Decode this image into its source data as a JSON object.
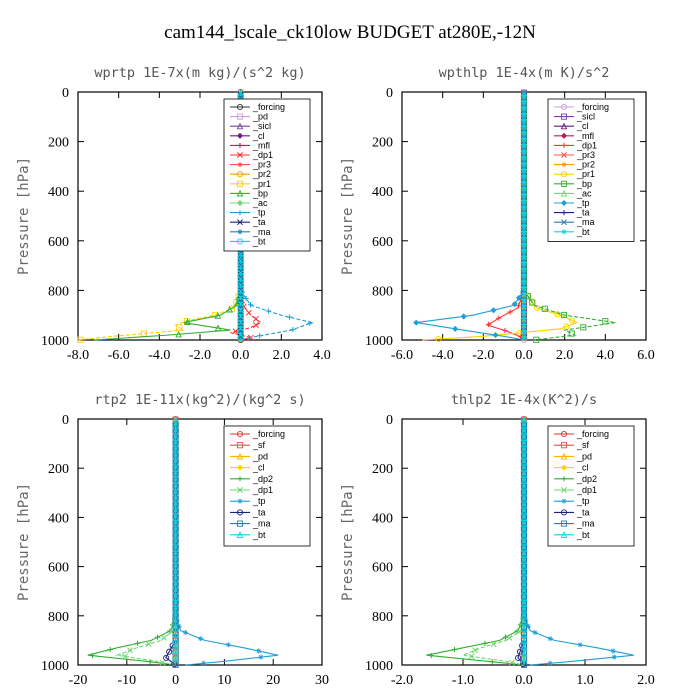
{
  "title": "cam144_lscale_ck10low  BUDGET at280E,-12N",
  "chart_data": [
    {
      "type": "line",
      "title": "wprtp  1E-7x(m kg)/(s^2 kg)",
      "ylabel": "Pressure [hPa]",
      "ylim": [
        1000,
        0
      ],
      "xlim": [
        -8,
        4
      ],
      "xticks": [
        "-8.0",
        "-6.0",
        "-4.0",
        "-2.0",
        "0.0",
        "2.0",
        "4.0"
      ],
      "xtick_values": [
        -8,
        -6,
        -4,
        -2,
        0,
        2,
        4
      ],
      "yticks": [
        "0",
        "200",
        "400",
        "600",
        "800",
        "1000"
      ],
      "ytick_values": [
        0,
        200,
        400,
        600,
        800,
        1000
      ],
      "legend": "top-right",
      "series": [
        {
          "name": "_forcing",
          "color": "#333333",
          "x": [
            0,
            0,
            0,
            0,
            0,
            0,
            0
          ],
          "y": [
            0,
            200,
            400,
            600,
            800,
            950,
            1000
          ]
        },
        {
          "name": "_pd",
          "color": "#c8a0d8",
          "x": [
            0,
            0,
            0,
            0
          ],
          "y": [
            0,
            500,
            900,
            1000
          ]
        },
        {
          "name": "_sicl",
          "color": "#7a3fa0",
          "x": [
            0,
            0,
            0,
            0
          ],
          "y": [
            0,
            500,
            900,
            1000
          ]
        },
        {
          "name": "_cl",
          "color": "#6a1a8a",
          "x": [
            0,
            0,
            0,
            0
          ],
          "y": [
            0,
            500,
            900,
            1000
          ]
        },
        {
          "name": "_mfl",
          "color": "#c0185a",
          "x": [
            0,
            0,
            0,
            0
          ],
          "y": [
            0,
            500,
            900,
            1000
          ]
        },
        {
          "name": "_dp1",
          "color": "#ff3030",
          "x": [
            0,
            0,
            0.1,
            0.5,
            1.0,
            0.5,
            -0.5,
            0.5,
            0
          ],
          "y": [
            0,
            800,
            860,
            900,
            930,
            950,
            970,
            990,
            1000
          ]
        },
        {
          "name": "_pr3",
          "color": "#ff5050",
          "x": [
            0,
            0,
            0,
            0
          ],
          "y": [
            0,
            500,
            900,
            1000
          ]
        },
        {
          "name": "_pr2",
          "color": "#ff9900",
          "x": [
            0,
            0,
            0,
            0
          ],
          "y": [
            0,
            500,
            900,
            1000
          ]
        },
        {
          "name": "_pr1",
          "color": "#ffd000",
          "x": [
            0,
            0,
            -0.3,
            -1.3,
            -2.5,
            -3.2,
            -2.8,
            -6.3,
            -8.0
          ],
          "y": [
            0,
            800,
            870,
            900,
            920,
            940,
            960,
            985,
            1000
          ]
        },
        {
          "name": "_bp",
          "color": "#30b030",
          "x": [
            0,
            0,
            -0.2,
            -1.0,
            -2.8,
            -0.5,
            -3.5,
            -7.2
          ],
          "y": [
            0,
            800,
            860,
            900,
            930,
            960,
            980,
            1000
          ]
        },
        {
          "name": "_ac",
          "color": "#70d870",
          "x": [
            0,
            0,
            0,
            0
          ],
          "y": [
            0,
            500,
            900,
            1000
          ]
        },
        {
          "name": "_tp",
          "color": "#1f9ed8",
          "x": [
            0,
            0,
            0.5,
            2.0,
            3.5,
            2.5,
            0.8,
            0
          ],
          "y": [
            0,
            800,
            860,
            900,
            930,
            960,
            985,
            1000
          ]
        },
        {
          "name": "_ta",
          "color": "#1a237e",
          "x": [
            0,
            0,
            0,
            0
          ],
          "y": [
            0,
            500,
            900,
            1000
          ]
        },
        {
          "name": "_ma",
          "color": "#2a7ab8",
          "x": [
            0,
            0,
            0,
            0
          ],
          "y": [
            0,
            500,
            900,
            1000
          ]
        },
        {
          "name": "_bt",
          "color": "#00d8e8",
          "x": [
            0,
            0,
            0,
            0
          ],
          "y": [
            0,
            500,
            900,
            1000
          ]
        }
      ]
    },
    {
      "type": "line",
      "title": "wpthlp  1E-4x(m K)/s^2",
      "ylabel": "Pressure [hPa]",
      "ylim": [
        1000,
        0
      ],
      "xlim": [
        -6,
        6
      ],
      "xticks": [
        "-6.0",
        "-4.0",
        "-2.0",
        "0.0",
        "2.0",
        "4.0",
        "6.0"
      ],
      "xtick_values": [
        -6,
        -4,
        -2,
        0,
        2,
        4,
        6
      ],
      "yticks": [
        "0",
        "200",
        "400",
        "600",
        "800",
        "1000"
      ],
      "ytick_values": [
        0,
        200,
        400,
        600,
        800,
        1000
      ],
      "legend": "top-right",
      "series": [
        {
          "name": "_forcing",
          "color": "#c8a0d8",
          "x": [
            0,
            0,
            0,
            0,
            0
          ],
          "y": [
            0,
            200,
            500,
            900,
            1000
          ]
        },
        {
          "name": "_sicl",
          "color": "#7a3fa0",
          "x": [
            0,
            0,
            0,
            0
          ],
          "y": [
            0,
            500,
            900,
            1000
          ]
        },
        {
          "name": "_cl",
          "color": "#6a1a8a",
          "x": [
            0,
            0,
            0,
            0
          ],
          "y": [
            0,
            500,
            900,
            1000
          ]
        },
        {
          "name": "_mfl",
          "color": "#c0185a",
          "x": [
            0,
            0,
            0,
            0
          ],
          "y": [
            0,
            500,
            900,
            1000
          ]
        },
        {
          "name": "_dp1",
          "color": "#ff3030",
          "x": [
            0,
            0,
            -0.3,
            -1.2,
            -1.8,
            -1.0,
            -0.2,
            0
          ],
          "y": [
            0,
            800,
            870,
            910,
            940,
            960,
            985,
            1000
          ]
        },
        {
          "name": "_pr3",
          "color": "#ff5050",
          "x": [
            0,
            0,
            0,
            0
          ],
          "y": [
            0,
            500,
            900,
            1000
          ]
        },
        {
          "name": "_pr2",
          "color": "#ff9900",
          "x": [
            0,
            0,
            0,
            0
          ],
          "y": [
            0,
            500,
            900,
            1000
          ]
        },
        {
          "name": "_pr1",
          "color": "#ffd000",
          "x": [
            0,
            0,
            0.6,
            1.8,
            2.6,
            1.8,
            -2.0,
            -5.0
          ],
          "y": [
            0,
            800,
            870,
            900,
            930,
            955,
            985,
            1000
          ]
        },
        {
          "name": "_bp",
          "color": "#30b030",
          "x": [
            0,
            0,
            0.5,
            2.0,
            4.5,
            2.0,
            2.5,
            0.5
          ],
          "y": [
            0,
            800,
            860,
            900,
            930,
            960,
            980,
            1000
          ]
        },
        {
          "name": "_ac",
          "color": "#70d870",
          "x": [
            0,
            0,
            0,
            0
          ],
          "y": [
            0,
            500,
            900,
            1000
          ]
        },
        {
          "name": "_tp",
          "color": "#1f9ed8",
          "x": [
            0,
            0,
            -0.5,
            -2.5,
            -5.3,
            -3.0,
            -1.0,
            0
          ],
          "y": [
            0,
            800,
            860,
            900,
            930,
            960,
            985,
            1000
          ]
        },
        {
          "name": "_ta",
          "color": "#1a237e",
          "x": [
            0,
            0,
            0,
            0
          ],
          "y": [
            0,
            500,
            900,
            1000
          ]
        },
        {
          "name": "_ma",
          "color": "#2a7ab8",
          "x": [
            0,
            0,
            0,
            0
          ],
          "y": [
            0,
            500,
            900,
            1000
          ]
        },
        {
          "name": "_bt",
          "color": "#00d8e8",
          "x": [
            0,
            0,
            0,
            0
          ],
          "y": [
            0,
            500,
            900,
            1000
          ]
        }
      ]
    },
    {
      "type": "line",
      "title": "rtp2  1E-11x(kg^2)/(kg^2 s)",
      "ylabel": "Pressure [hPa]",
      "ylim": [
        1000,
        0
      ],
      "xlim": [
        -20,
        30
      ],
      "xticks": [
        "-20",
        "-10",
        "0",
        "10",
        "20",
        "30"
      ],
      "xtick_values": [
        -20,
        -10,
        0,
        10,
        20,
        30
      ],
      "yticks": [
        "0",
        "200",
        "400",
        "600",
        "800",
        "1000"
      ],
      "ytick_values": [
        0,
        200,
        400,
        600,
        800,
        1000
      ],
      "legend": "top-right",
      "series": [
        {
          "name": "_forcing",
          "color": "#e03030",
          "x": [
            0,
            0,
            0,
            0,
            0
          ],
          "y": [
            0,
            300,
            600,
            900,
            1000
          ]
        },
        {
          "name": "_sf",
          "color": "#e05050",
          "x": [
            0,
            0,
            0,
            0
          ],
          "y": [
            0,
            500,
            900,
            1000
          ]
        },
        {
          "name": "_pd",
          "color": "#ffb000",
          "x": [
            0,
            0,
            0,
            0
          ],
          "y": [
            0,
            500,
            900,
            1000
          ]
        },
        {
          "name": "_cl",
          "color": "#ffd000",
          "x": [
            0,
            0,
            0,
            0
          ],
          "y": [
            0,
            500,
            900,
            1000
          ]
        },
        {
          "name": "_dp2",
          "color": "#30b030",
          "x": [
            0,
            0,
            -1,
            -5,
            -12,
            -18,
            -6,
            0
          ],
          "y": [
            0,
            800,
            860,
            900,
            930,
            960,
            985,
            1000
          ]
        },
        {
          "name": "_dp1",
          "color": "#70d870",
          "x": [
            0,
            0,
            -0.5,
            -3,
            -8,
            -12,
            -4,
            0
          ],
          "y": [
            0,
            800,
            860,
            900,
            930,
            960,
            985,
            1000
          ]
        },
        {
          "name": "_tp",
          "color": "#1f9ed8",
          "x": [
            0,
            0,
            1,
            6,
            14,
            21,
            10,
            2
          ],
          "y": [
            0,
            800,
            860,
            900,
            930,
            960,
            985,
            1000
          ]
        },
        {
          "name": "_ta",
          "color": "#1a237e",
          "x": [
            0,
            0,
            0,
            -2,
            0
          ],
          "y": [
            0,
            500,
            900,
            970,
            1000
          ]
        },
        {
          "name": "_ma",
          "color": "#2a7ab8",
          "x": [
            0,
            0,
            0,
            0
          ],
          "y": [
            0,
            500,
            900,
            1000
          ]
        },
        {
          "name": "_bt",
          "color": "#00d8e8",
          "x": [
            0,
            0,
            0,
            0
          ],
          "y": [
            0,
            500,
            900,
            1000
          ]
        }
      ]
    },
    {
      "type": "line",
      "title": "thlp2  1E-4x(K^2)/s",
      "ylabel": "Pressure [hPa]",
      "ylim": [
        1000,
        0
      ],
      "xlim": [
        -2,
        2
      ],
      "xticks": [
        "-2.0",
        "-1.0",
        "0.0",
        "1.0",
        "2.0"
      ],
      "xtick_values": [
        -2,
        -1,
        0,
        1,
        2
      ],
      "yticks": [
        "0",
        "200",
        "400",
        "600",
        "800",
        "1000"
      ],
      "ytick_values": [
        0,
        200,
        400,
        600,
        800,
        1000
      ],
      "legend": "top-right",
      "series": [
        {
          "name": "_forcing",
          "color": "#e03030",
          "x": [
            0,
            0,
            0,
            0,
            0
          ],
          "y": [
            0,
            300,
            600,
            900,
            1000
          ]
        },
        {
          "name": "_sf",
          "color": "#e05050",
          "x": [
            0,
            0,
            0,
            0
          ],
          "y": [
            0,
            500,
            900,
            1000
          ]
        },
        {
          "name": "_pd",
          "color": "#ffb000",
          "x": [
            0,
            0,
            0,
            0
          ],
          "y": [
            0,
            500,
            900,
            1000
          ]
        },
        {
          "name": "_cl",
          "color": "#ffd000",
          "x": [
            0,
            0,
            0,
            0
          ],
          "y": [
            0,
            500,
            900,
            1000
          ]
        },
        {
          "name": "_dp2",
          "color": "#30b030",
          "x": [
            0,
            0,
            -0.1,
            -0.4,
            -1.0,
            -1.6,
            -0.6,
            0
          ],
          "y": [
            0,
            800,
            860,
            900,
            930,
            960,
            985,
            1000
          ]
        },
        {
          "name": "_dp1",
          "color": "#70d870",
          "x": [
            0,
            0,
            -0.05,
            -0.3,
            -0.7,
            -1.0,
            -0.3,
            0
          ],
          "y": [
            0,
            800,
            860,
            900,
            930,
            960,
            985,
            1000
          ]
        },
        {
          "name": "_tp",
          "color": "#1f9ed8",
          "x": [
            0,
            0,
            0.1,
            0.5,
            1.2,
            1.8,
            0.8,
            0.1
          ],
          "y": [
            0,
            800,
            860,
            900,
            930,
            960,
            985,
            1000
          ]
        },
        {
          "name": "_ta",
          "color": "#1a237e",
          "x": [
            0,
            0,
            0,
            -0.1,
            0
          ],
          "y": [
            0,
            500,
            900,
            970,
            1000
          ]
        },
        {
          "name": "_ma",
          "color": "#2a7ab8",
          "x": [
            0,
            0,
            0,
            0
          ],
          "y": [
            0,
            500,
            900,
            1000
          ]
        },
        {
          "name": "_bt",
          "color": "#00d8e8",
          "x": [
            0,
            0,
            0,
            0
          ],
          "y": [
            0,
            500,
            900,
            1000
          ]
        }
      ]
    }
  ]
}
